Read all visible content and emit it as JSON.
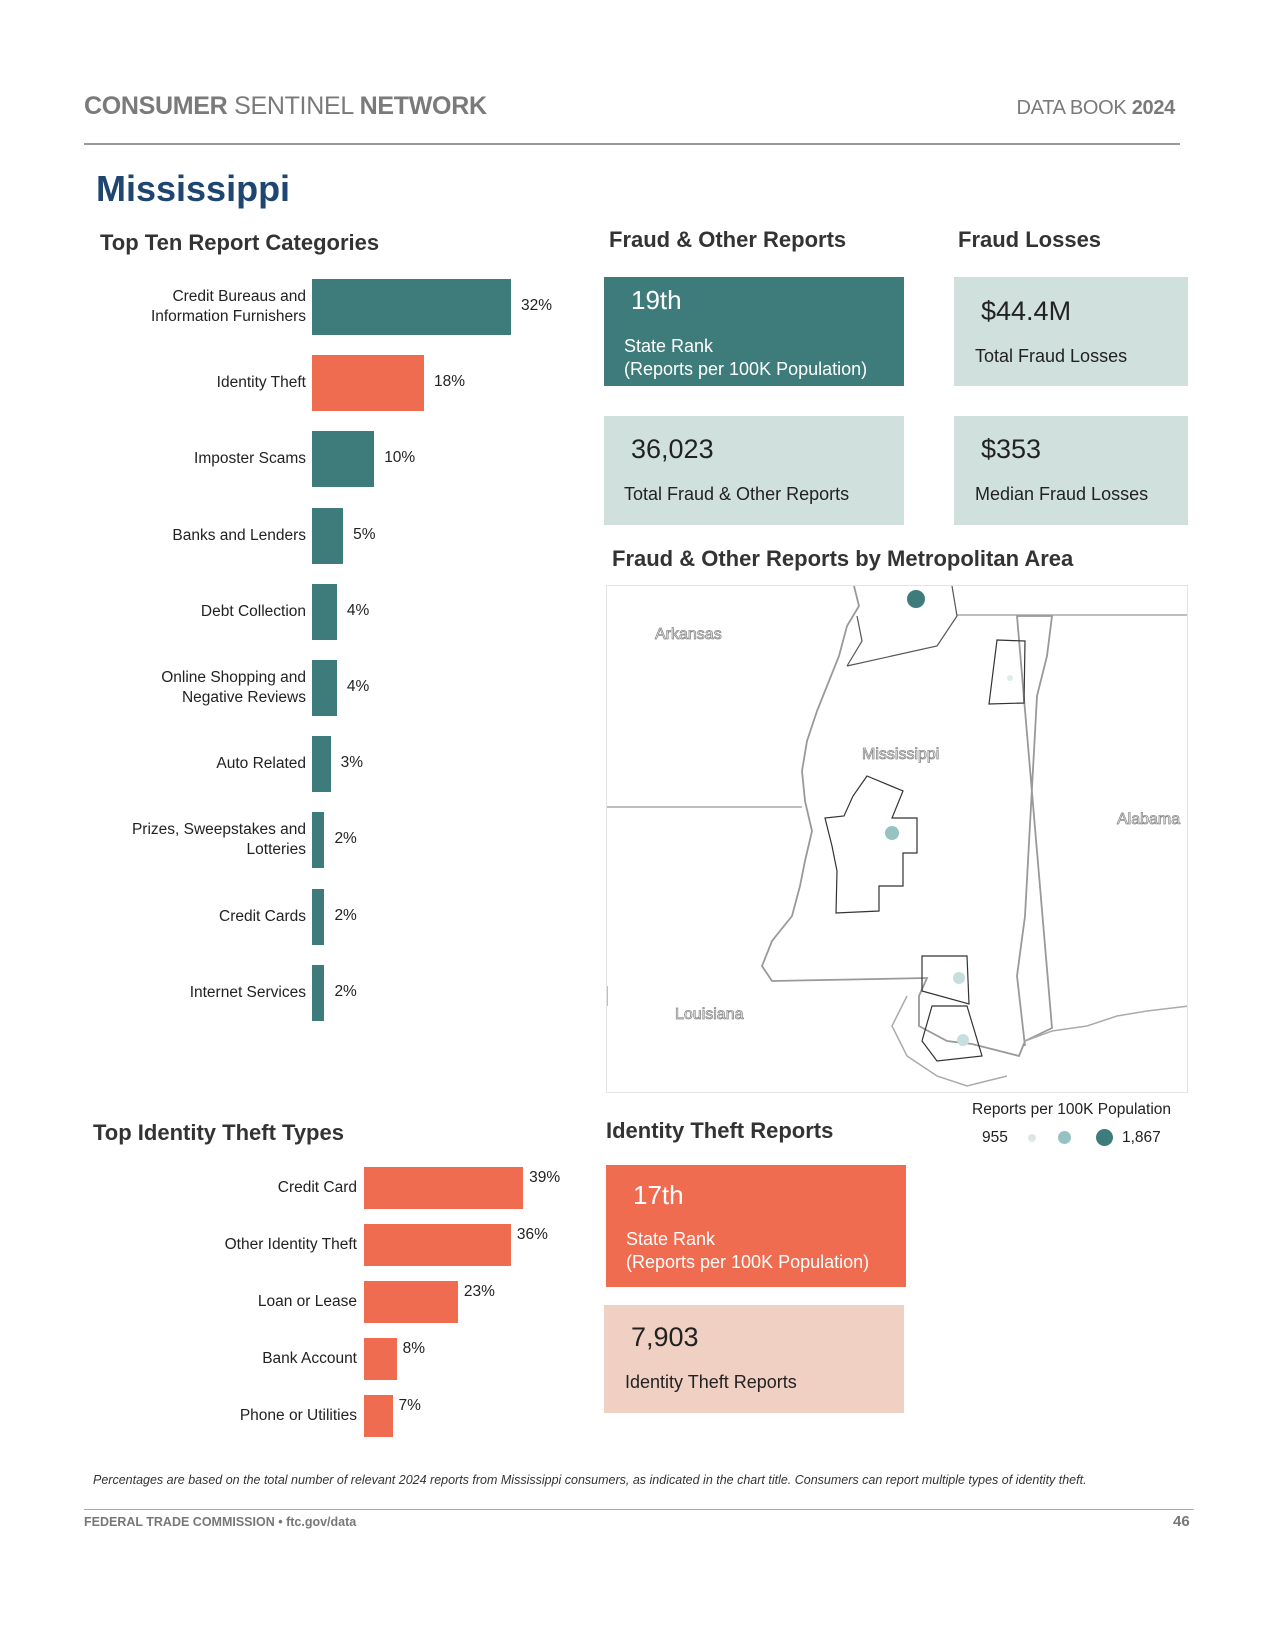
{
  "header": {
    "left_bold1": "CONSUMER",
    "left_light": " SENTINEL ",
    "left_bold2": "NETWORK",
    "right_light": "DATA BOOK ",
    "right_bold": "2024"
  },
  "state": "Mississippi",
  "top_ten": {
    "title": "Top Ten Report Categories",
    "color": "#3e7b7b",
    "highlight_color": "#f06c50",
    "items": [
      {
        "label": "Credit Bureaus and\nInformation Furnishers",
        "pct": "32%",
        "value": 32
      },
      {
        "label": "Identity Theft",
        "pct": "18%",
        "value": 18
      },
      {
        "label": "Imposter Scams",
        "pct": "10%",
        "value": 10
      },
      {
        "label": "Banks and Lenders",
        "pct": "5%",
        "value": 5
      },
      {
        "label": "Debt Collection",
        "pct": "4%",
        "value": 4
      },
      {
        "label": "Online Shopping and\nNegative Reviews",
        "pct": "4%",
        "value": 4
      },
      {
        "label": "Auto Related",
        "pct": "3%",
        "value": 3
      },
      {
        "label": "Prizes, Sweepstakes and\nLotteries",
        "pct": "2%",
        "value": 2
      },
      {
        "label": "Credit Cards",
        "pct": "2%",
        "value": 2
      },
      {
        "label": "Internet Services",
        "pct": "2%",
        "value": 2
      }
    ]
  },
  "fraud_reports": {
    "title": "Fraud & Other Reports",
    "rank": "19th",
    "rank_label1": "State Rank",
    "rank_label2": "(Reports per 100K Population)",
    "total": "36,023",
    "total_label": "Total Fraud & Other Reports"
  },
  "fraud_losses": {
    "title": "Fraud Losses",
    "total": "$44.4M",
    "total_label": "Total Fraud Losses",
    "median": "$353",
    "median_label": "Median Fraud Losses"
  },
  "map": {
    "title": "Fraud & Other Reports by Metropolitan Area",
    "labels": {
      "arkansas": "Arkansas",
      "mississippi": "Mississippi",
      "alabama": "Alabama",
      "louisiana": "Louisiana"
    },
    "legend": {
      "title": "Reports per 100K Population",
      "min": "955",
      "max": "1,867"
    }
  },
  "id_types": {
    "title": "Top Identity Theft Types",
    "color": "#f06c50",
    "items": [
      {
        "label": "Credit Card",
        "pct": "39%",
        "value": 39
      },
      {
        "label": "Other Identity Theft",
        "pct": "36%",
        "value": 36
      },
      {
        "label": "Loan or Lease",
        "pct": "23%",
        "value": 23
      },
      {
        "label": "Bank Account",
        "pct": "8%",
        "value": 8
      },
      {
        "label": "Phone or Utilities",
        "pct": "7%",
        "value": 7
      }
    ]
  },
  "id_reports": {
    "title": "Identity Theft Reports",
    "rank": "17th",
    "rank_label1": "State Rank",
    "rank_label2": "(Reports per 100K Population)",
    "total": "7,903",
    "total_label": "Identity Theft Reports"
  },
  "footnote": "Percentages are based on the total number of relevant 2024 reports from Mississippi consumers, as indicated in the chart title.  Consumers can report multiple types of identity theft.",
  "footer": {
    "left": "FEDERAL TRADE COMMISSION • ftc.gov/data",
    "page": "46"
  }
}
